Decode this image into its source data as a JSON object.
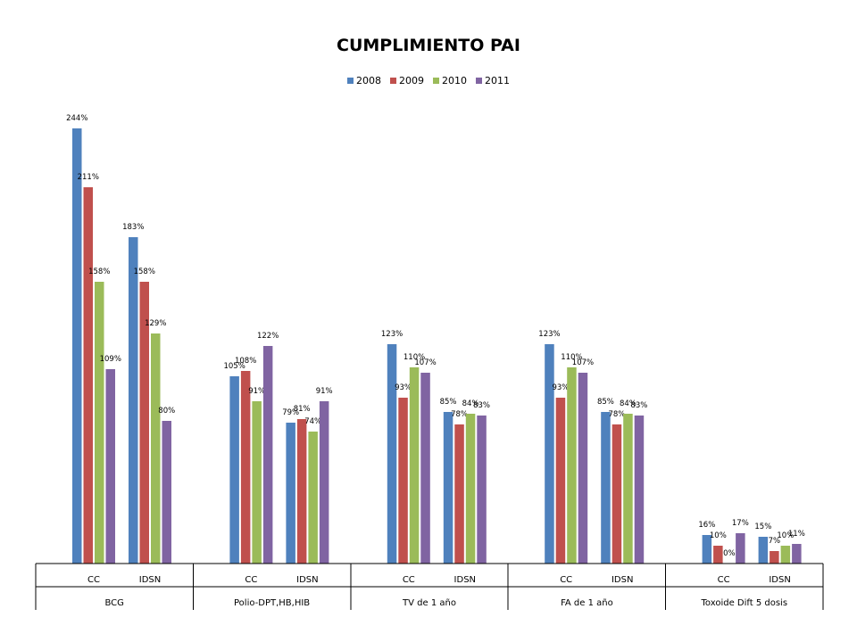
{
  "chart_data": {
    "type": "bar",
    "title": "CUMPLIMIENTO PAI",
    "legend_position": "top",
    "ylim": [
      0,
      250
    ],
    "grid": false,
    "groups": [
      "BCG",
      "Polio-DPT,HB,HIB",
      "TV de 1 año",
      "FA de 1 año",
      "Toxoide Dift 5 dosis"
    ],
    "subcategories": [
      "CC",
      "IDSN"
    ],
    "series": [
      {
        "name": "2008",
        "color": "#4F81BD",
        "values": [
          244,
          183,
          105,
          79,
          123,
          85,
          123,
          85,
          16,
          15
        ],
        "labels": [
          "244%",
          "183%",
          "105%",
          "79%",
          "123%",
          "85%",
          "123%",
          "85%",
          "16%",
          "15%"
        ]
      },
      {
        "name": "2009",
        "color": "#C0504D",
        "values": [
          211,
          158,
          108,
          81,
          93,
          78,
          93,
          78,
          10,
          7
        ],
        "labels": [
          "211%",
          "158%",
          "108%",
          "81%",
          "93%",
          "78%",
          "93%",
          "78%",
          "10%",
          "7%"
        ]
      },
      {
        "name": "2010",
        "color": "#9BBB59",
        "values": [
          158,
          129,
          91,
          74,
          110,
          84,
          110,
          84,
          0,
          10
        ],
        "labels": [
          "158%",
          "129%",
          "91%",
          "74%",
          "110%",
          "84%",
          "110%",
          "84%",
          "0%",
          "10%"
        ]
      },
      {
        "name": "2011",
        "color": "#8064A2",
        "values": [
          109,
          80,
          122,
          91,
          107,
          83,
          107,
          83,
          17,
          11
        ],
        "labels": [
          "109%",
          "80%",
          "122%",
          "91%",
          "107%",
          "83%",
          "107%",
          "83%",
          "17%",
          "11%"
        ]
      }
    ]
  }
}
